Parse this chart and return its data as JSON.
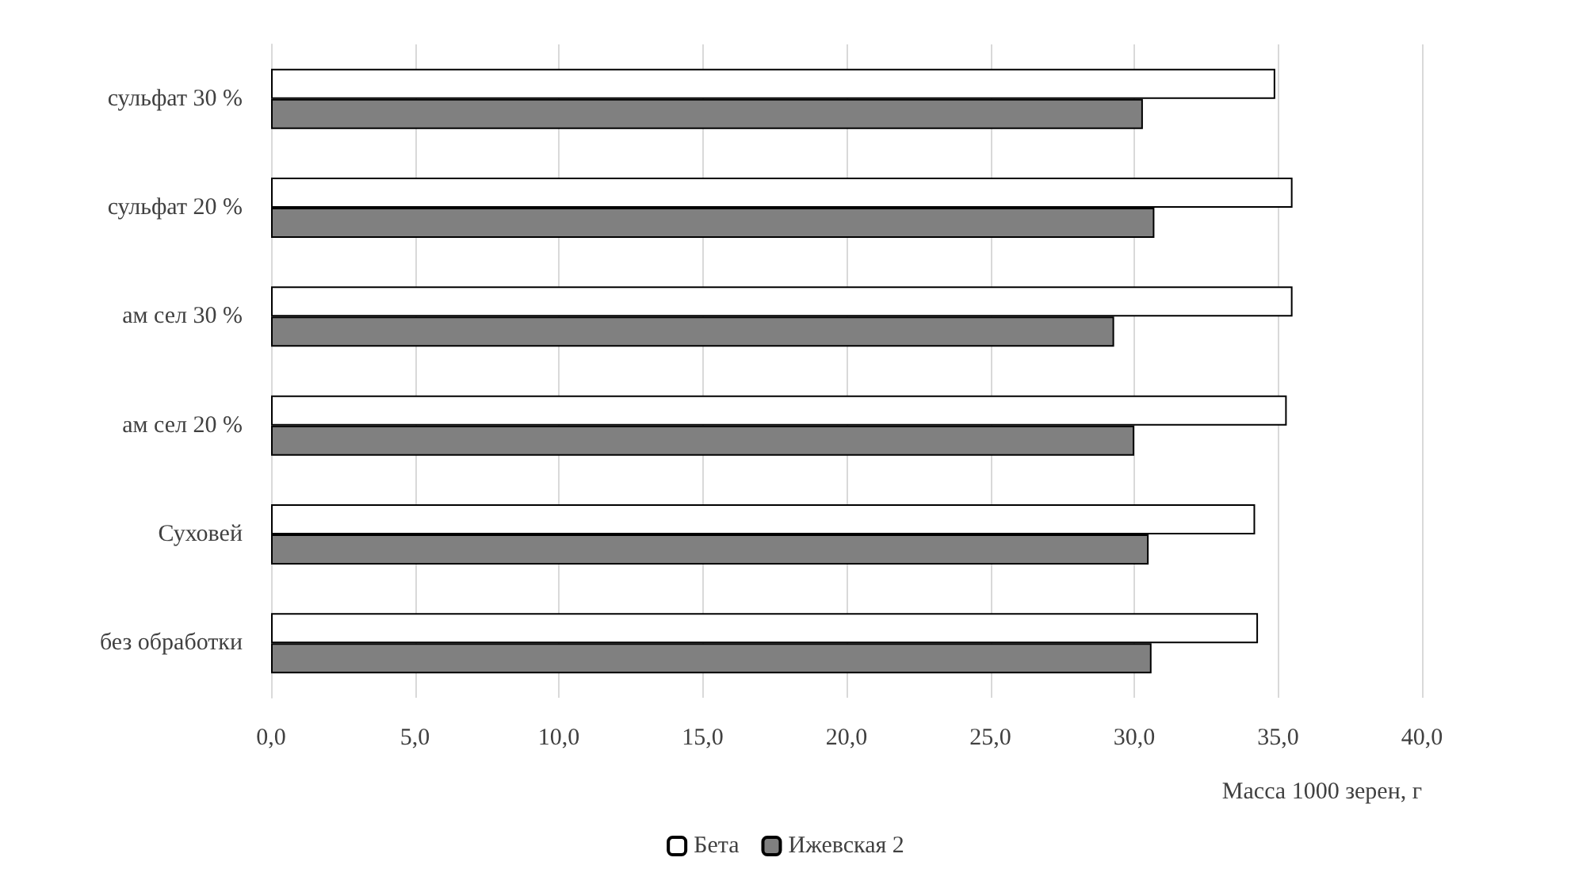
{
  "chart_data": {
    "type": "bar",
    "orientation": "horizontal",
    "xlabel": "Масса 1000 зерен, г",
    "categories": [
      "сульфат 30 %",
      "сульфат 20 %",
      "ам сел 30 %",
      "ам сел 20 %",
      "Суховей",
      "без обработки"
    ],
    "series": [
      {
        "name": "Бета",
        "color": "#ffffff",
        "values": [
          34.9,
          35.5,
          35.5,
          35.3,
          34.2,
          34.3
        ]
      },
      {
        "name": "Ижевская 2",
        "color": "#808080",
        "values": [
          30.3,
          30.7,
          29.3,
          30.0,
          30.5,
          30.6
        ]
      }
    ],
    "xlim": [
      0,
      40
    ],
    "xticks": [
      {
        "value": 0,
        "label": "0,0"
      },
      {
        "value": 5,
        "label": "5,0"
      },
      {
        "value": 10,
        "label": "10,0"
      },
      {
        "value": 15,
        "label": "15,0"
      },
      {
        "value": 20,
        "label": "20,0"
      },
      {
        "value": 25,
        "label": "25,0"
      },
      {
        "value": 30,
        "label": "30,0"
      },
      {
        "value": 35,
        "label": "35,0"
      },
      {
        "value": 40,
        "label": "40,0"
      }
    ],
    "grid": "x",
    "legend": "bottom"
  }
}
